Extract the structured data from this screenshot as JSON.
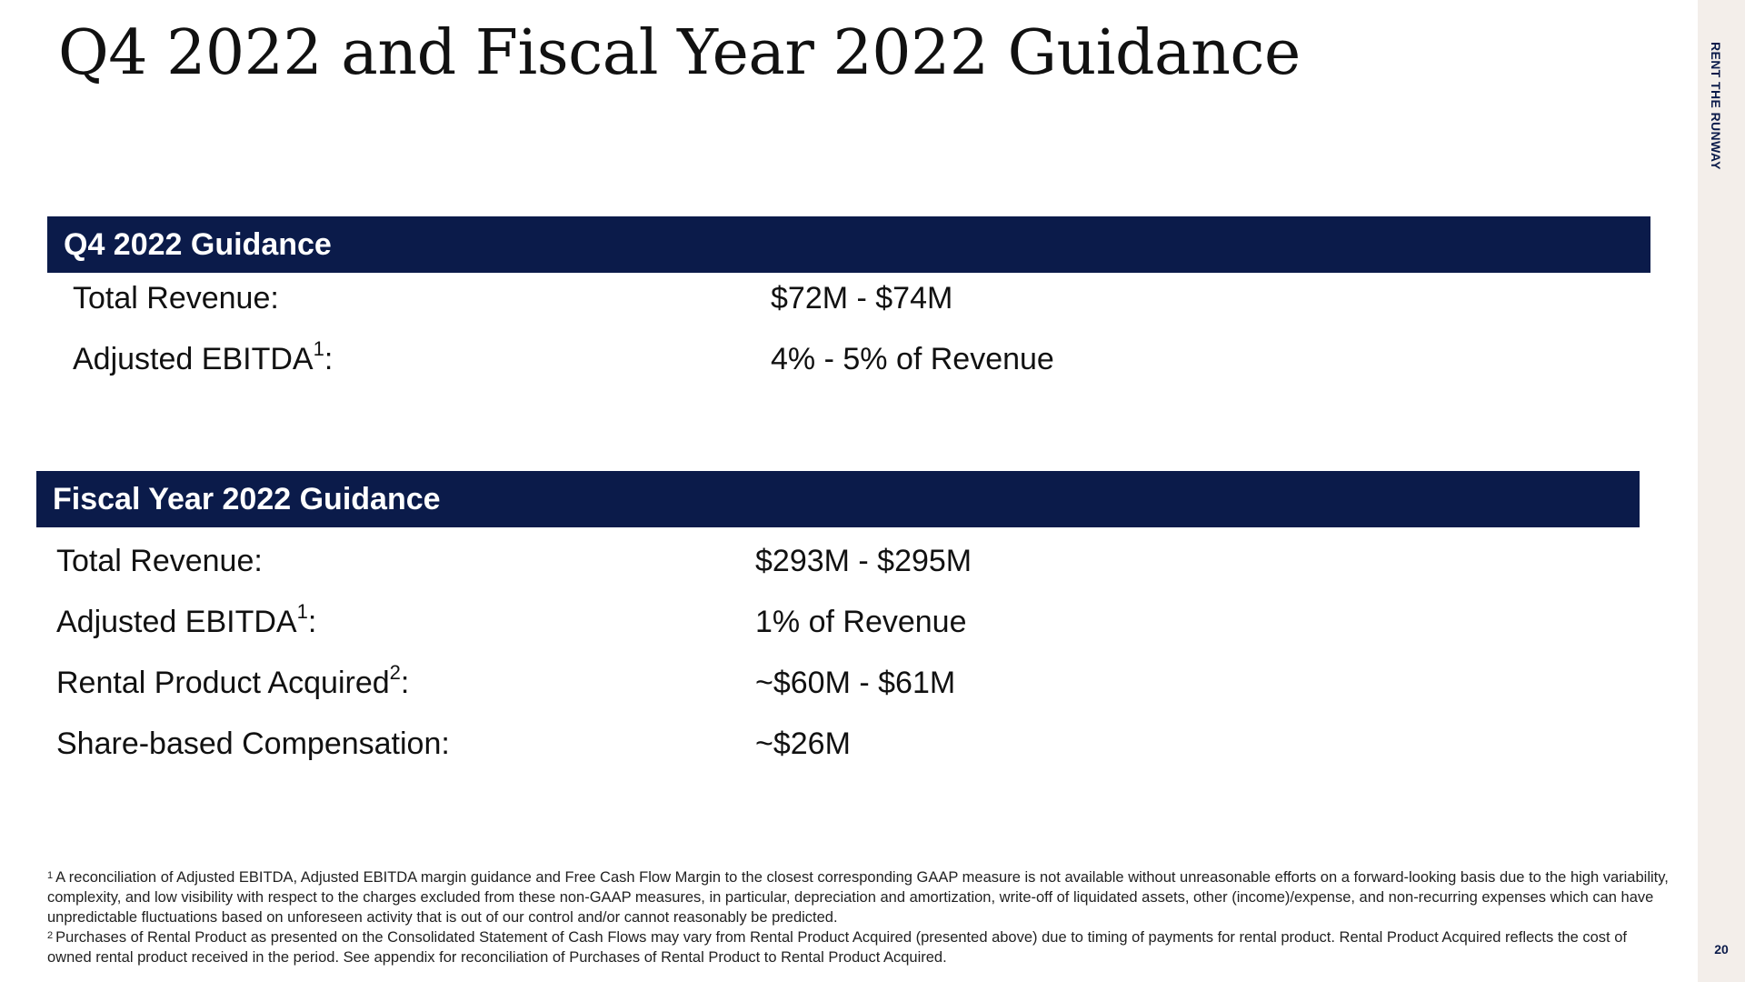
{
  "slide": {
    "title": "Q4 2022 and Fiscal Year 2022 Guidance",
    "brand": "RENT THE RUNWAY",
    "page_number": "20",
    "colors": {
      "header_bg": "#0b1b4a",
      "header_text": "#ffffff",
      "side_strip": "#f3eeea"
    }
  },
  "q4": {
    "header": "Q4 2022 Guidance",
    "rows": [
      {
        "label": "Total Revenue:",
        "ref": "",
        "value": "$72M - $74M"
      },
      {
        "label": "Adjusted EBITDA",
        "ref": "1",
        "value": "4% - 5% of Revenue"
      }
    ]
  },
  "fy": {
    "header": "Fiscal Year 2022 Guidance",
    "rows": [
      {
        "label": "Total Revenue:",
        "ref": "",
        "value": "$293M - $295M"
      },
      {
        "label": "Adjusted EBITDA",
        "ref": "1",
        "value": "1% of Revenue"
      },
      {
        "label": "Rental Product Acquired",
        "ref": "2",
        "value": "~$60M - $61M"
      },
      {
        "label": "Share-based Compensation:",
        "ref": "",
        "value": "~$26M"
      }
    ]
  },
  "footnotes": [
    {
      "marker": "1",
      "text": "A reconciliation of Adjusted EBITDA,  Adjusted EBITDA margin guidance and Free Cash Flow Margin to the closest corresponding GAAP measure is not available without unreasonable efforts on a forward-looking basis due to the high variability, complexity, and low visibility with respect to the charges excluded from these non-GAAP measures, in particular, depreciation and amortization, write-off of liquidated assets, other (income)/expense, and non-recurring expenses which can have unpredictable fluctuations based on unforeseen activity that is out of our control and/or cannot reasonably be predicted."
    },
    {
      "marker": "2",
      "text": "Purchases of Rental Product as presented on the Consolidated Statement of Cash Flows may vary from Rental Product Acquired (presented above) due to timing of payments for rental product. Rental Product Acquired reflects the cost of owned rental product received in the period. See appendix for reconciliation of Purchases of Rental Product to Rental Product Acquired."
    }
  ]
}
